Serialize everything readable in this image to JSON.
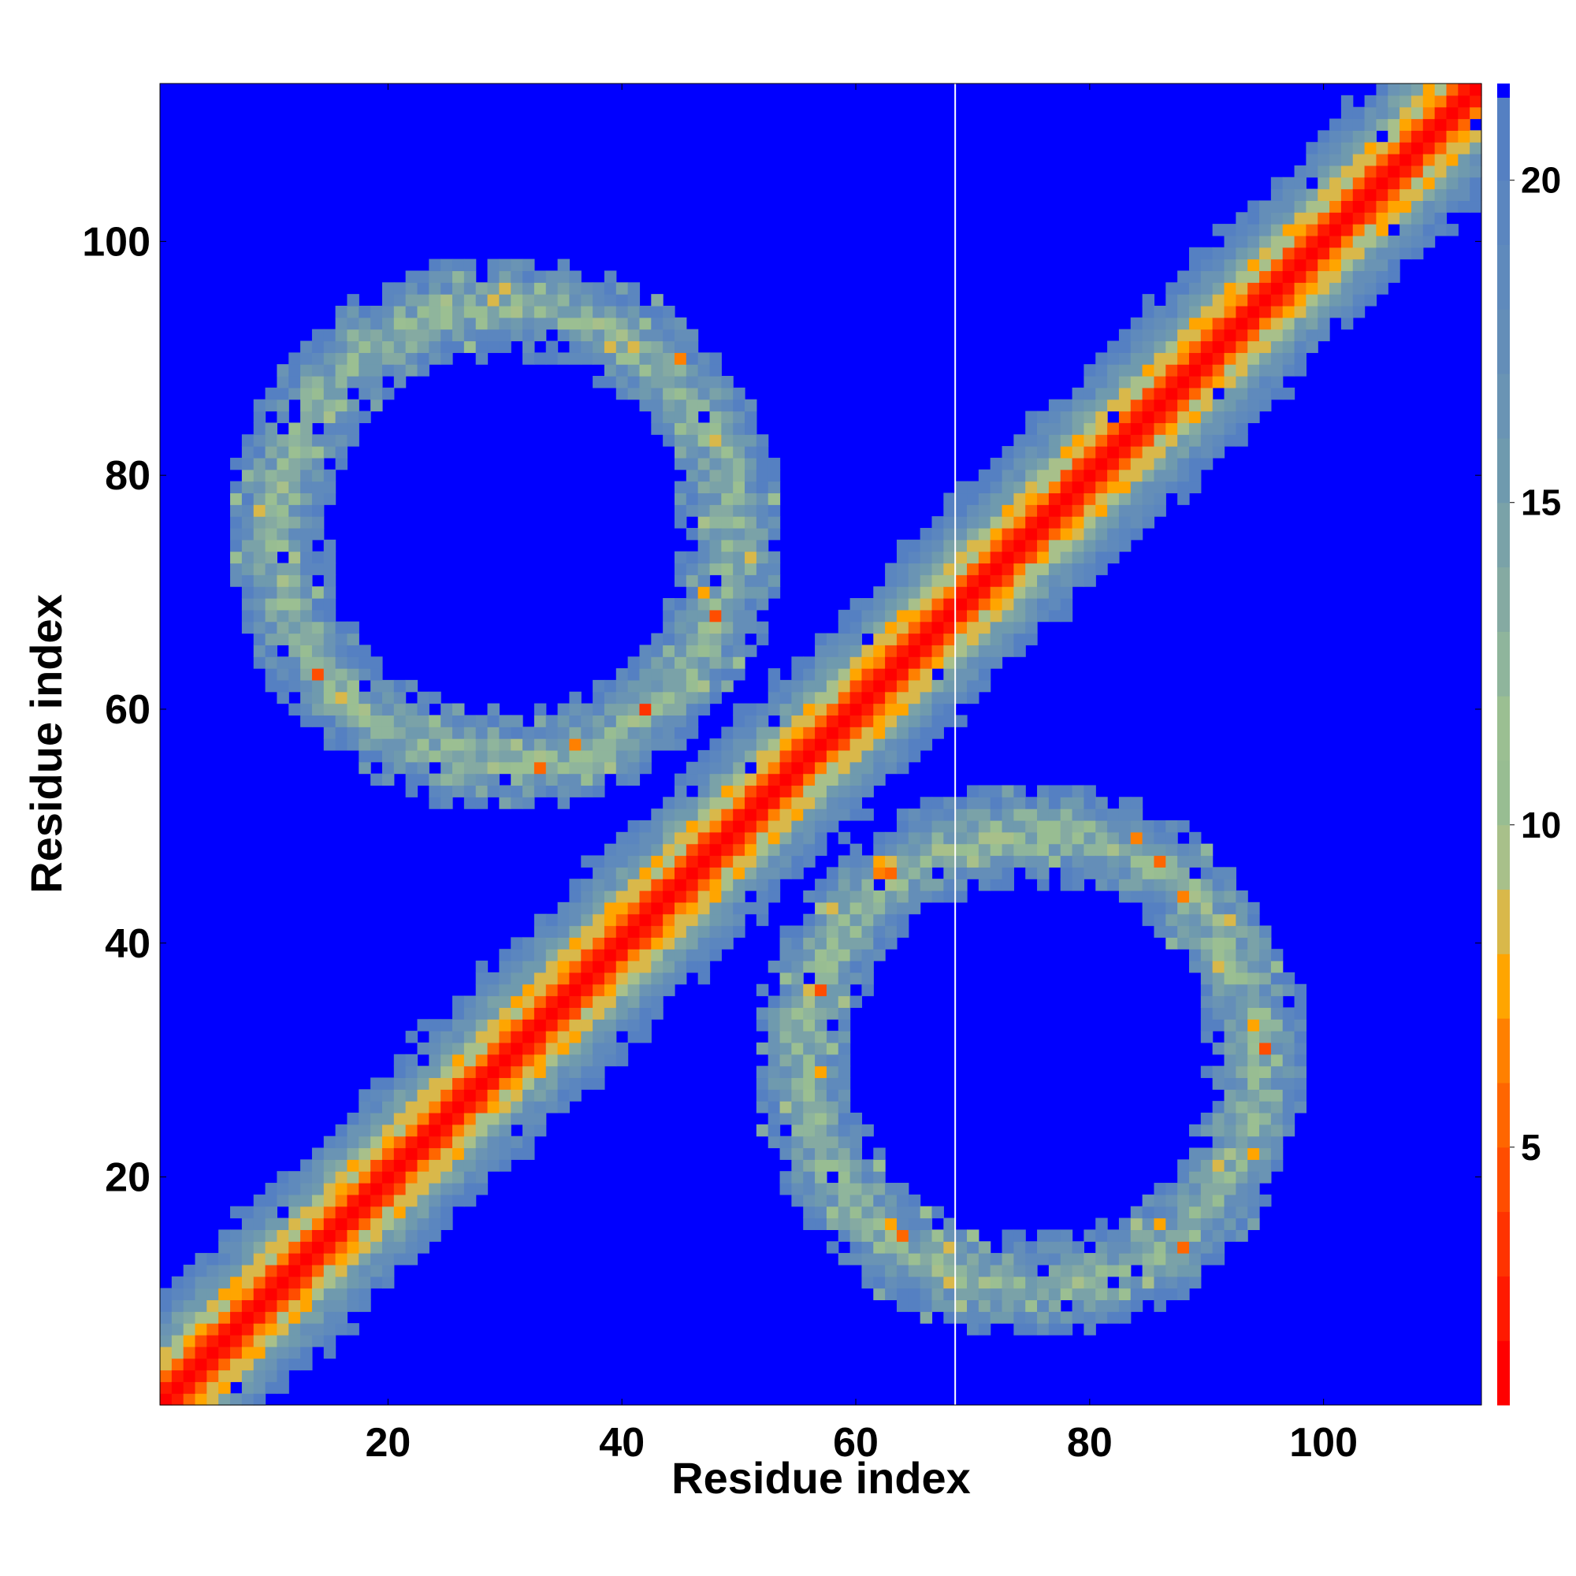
{
  "chart_data": {
    "type": "heatmap",
    "title": "",
    "xlabel": "Residue index",
    "ylabel": "Residue index",
    "xlim": [
      1,
      113
    ],
    "ylim": [
      1,
      113
    ],
    "x_ticks": [
      20,
      40,
      60,
      80,
      100
    ],
    "y_ticks": [
      20,
      40,
      60,
      80,
      100
    ],
    "n_residues": 113,
    "gap_residue": 68,
    "colorbar": {
      "range": [
        1,
        21.5
      ],
      "ticks": [
        5,
        10,
        15,
        20
      ],
      "above_max_color": "#0000ff",
      "levels": [
        {
          "from": 1,
          "to": 2,
          "color": "#ff0000"
        },
        {
          "from": 2,
          "to": 3,
          "color": "#ff1a00"
        },
        {
          "from": 3,
          "to": 4,
          "color": "#ff3300"
        },
        {
          "from": 4,
          "to": 5,
          "color": "#ff4d00"
        },
        {
          "from": 5,
          "to": 6,
          "color": "#ff6600"
        },
        {
          "from": 6,
          "to": 7,
          "color": "#ff8000"
        },
        {
          "from": 7,
          "to": 8,
          "color": "#ffa500"
        },
        {
          "from": 8,
          "to": 9,
          "color": "#d9b84a"
        },
        {
          "from": 9,
          "to": 10,
          "color": "#a8c08a"
        },
        {
          "from": 10,
          "to": 11,
          "color": "#98bd92"
        },
        {
          "from": 11,
          "to": 12,
          "color": "#9bbf92"
        },
        {
          "from": 12,
          "to": 13,
          "color": "#8fb59c"
        },
        {
          "from": 13,
          "to": 14,
          "color": "#85aaa2"
        },
        {
          "from": 14,
          "to": 15,
          "color": "#7aa2a8"
        },
        {
          "from": 15,
          "to": 16,
          "color": "#6f9aae"
        },
        {
          "from": 16,
          "to": 17,
          "color": "#6a94b4"
        },
        {
          "from": 17,
          "to": 18,
          "color": "#648eb8"
        },
        {
          "from": 18,
          "to": 19,
          "color": "#5f8abc"
        },
        {
          "from": 19,
          "to": 20,
          "color": "#5b86bf"
        },
        {
          "from": 20,
          "to": 21.5,
          "color": "#5580c2"
        }
      ]
    },
    "description_features": {
      "main_diagonal": "distance ~1-3 along x=y, widening band to ~15 Å",
      "upper_left_ring": {
        "center": [
          30,
          75
        ],
        "radius": 24,
        "inner_radius": 15
      },
      "lower_right_ring": {
        "center": [
          75,
          30
        ],
        "radius": 24,
        "inner_radius": 15
      }
    }
  }
}
